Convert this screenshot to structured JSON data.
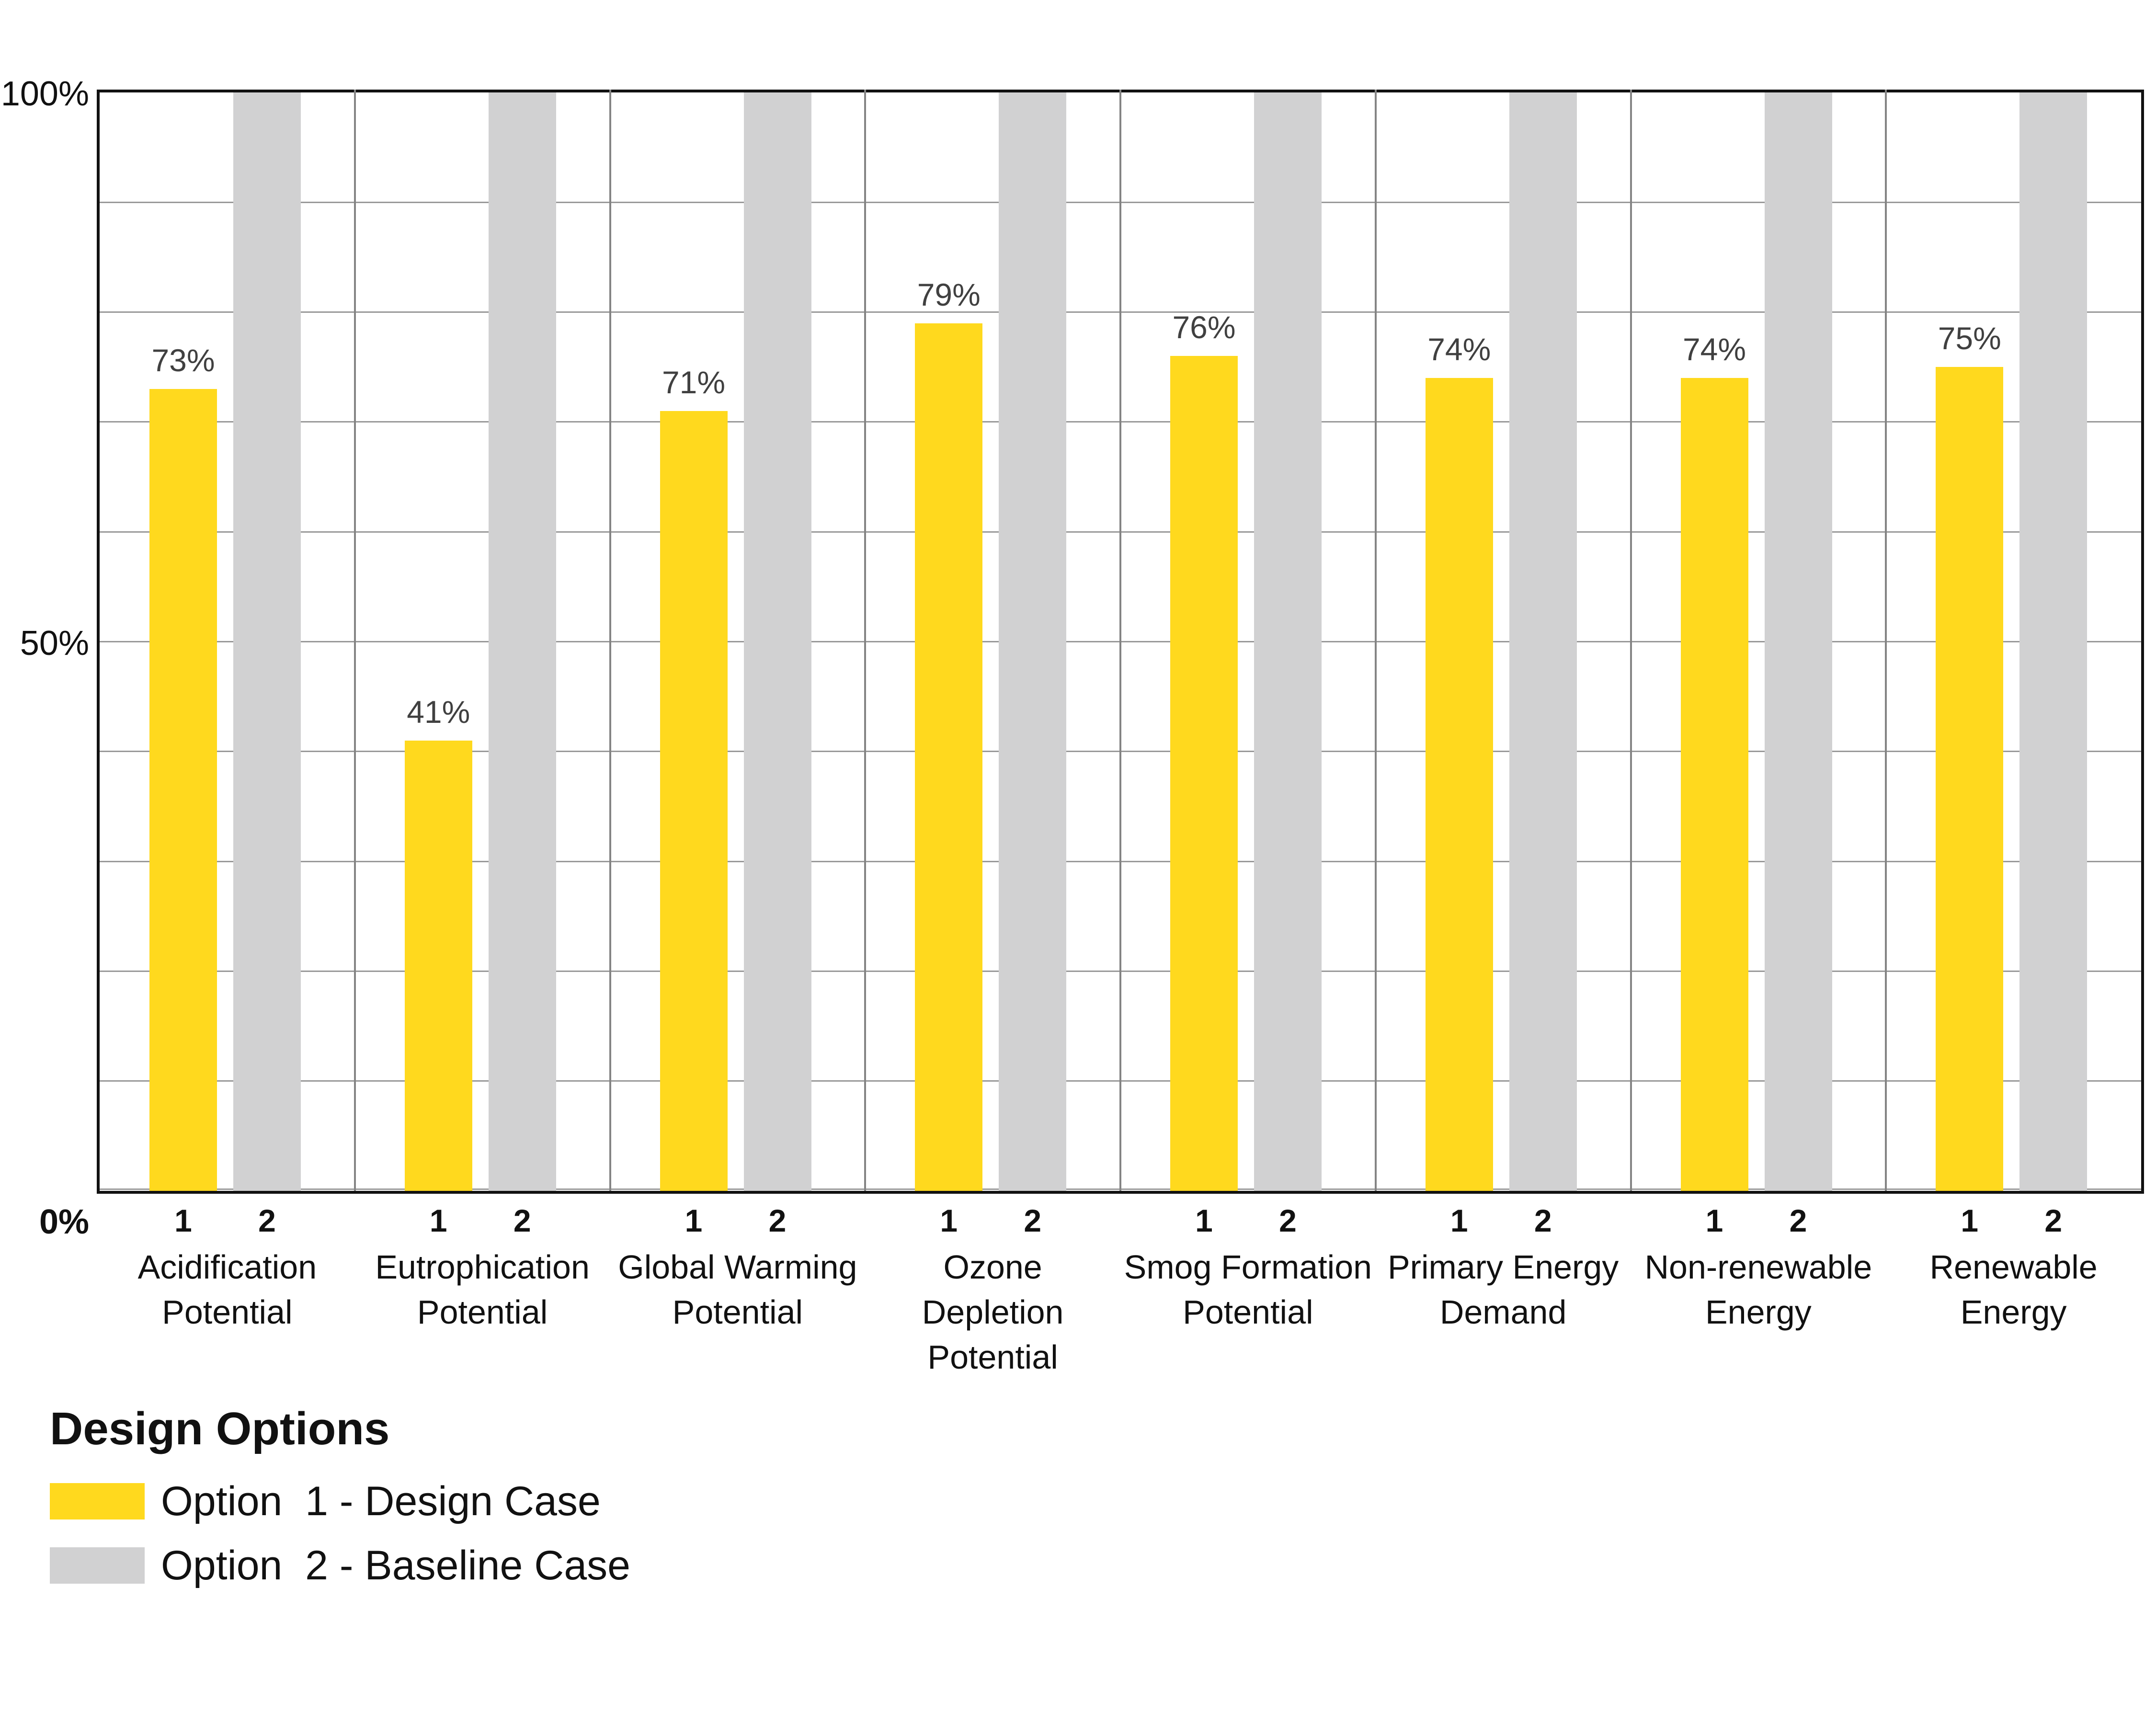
{
  "chart_data": {
    "type": "bar",
    "title": "",
    "categories": [
      {
        "name": "Acidification Potential",
        "lines": [
          "Acidification",
          "Potential"
        ]
      },
      {
        "name": "Eutrophication Potential",
        "lines": [
          "Eutrophication",
          "Potential"
        ]
      },
      {
        "name": "Global Warming Potential",
        "lines": [
          "Global Warming",
          "Potential"
        ]
      },
      {
        "name": "Ozone Depletion Potential",
        "lines": [
          "Ozone",
          "Depletion",
          "Potential"
        ]
      },
      {
        "name": "Smog Formation Potential",
        "lines": [
          "Smog Formation",
          "Potential"
        ]
      },
      {
        "name": "Primary Energy Demand",
        "lines": [
          "Primary Energy",
          "Demand"
        ]
      },
      {
        "name": "Non-renewable Energy",
        "lines": [
          "Non-renewable",
          "Energy"
        ]
      },
      {
        "name": "Renewable Energy",
        "lines": [
          "Renewable",
          "Energy"
        ]
      }
    ],
    "series": [
      {
        "name": "Option  1 - Design Case",
        "tick_label": "1",
        "color": "#FFD91E",
        "values": [
          73,
          41,
          71,
          79,
          76,
          74,
          74,
          75
        ],
        "value_labels": [
          "73%",
          "41%",
          "71%",
          "79%",
          "76%",
          "74%",
          "74%",
          "75%"
        ],
        "show_value_labels": true
      },
      {
        "name": "Option  2 - Baseline Case",
        "tick_label": "2",
        "color": "#D1D1D2",
        "values": [
          100,
          100,
          100,
          100,
          100,
          100,
          100,
          100
        ],
        "value_labels": [
          "",
          "",
          "",
          "",
          "",
          "",
          "",
          ""
        ],
        "show_value_labels": false
      }
    ],
    "yaxis": {
      "min": 0,
      "max": 100,
      "gridline_step": 10,
      "grid_on": true,
      "ticks": [
        {
          "value": 100,
          "label": "100%",
          "bold": false
        },
        {
          "value": 50,
          "label": "50%",
          "bold": false
        },
        {
          "value": 0,
          "label": "0%",
          "bold": true
        }
      ]
    },
    "legend": {
      "position": "bottom-left",
      "title": "Design Options",
      "items": [
        {
          "label": "Option  1 - Design Case",
          "color": "#FFD91E"
        },
        {
          "label": "Option  2 - Baseline Case",
          "color": "#D1D1D2"
        }
      ]
    },
    "colors": {
      "bar_option1": "#FFD91E",
      "bar_option2": "#D1D1D2",
      "gridline": "#999999",
      "separator": "#848484",
      "axis_border": "#111111",
      "value_label": "#404040",
      "text": "#111111"
    }
  }
}
